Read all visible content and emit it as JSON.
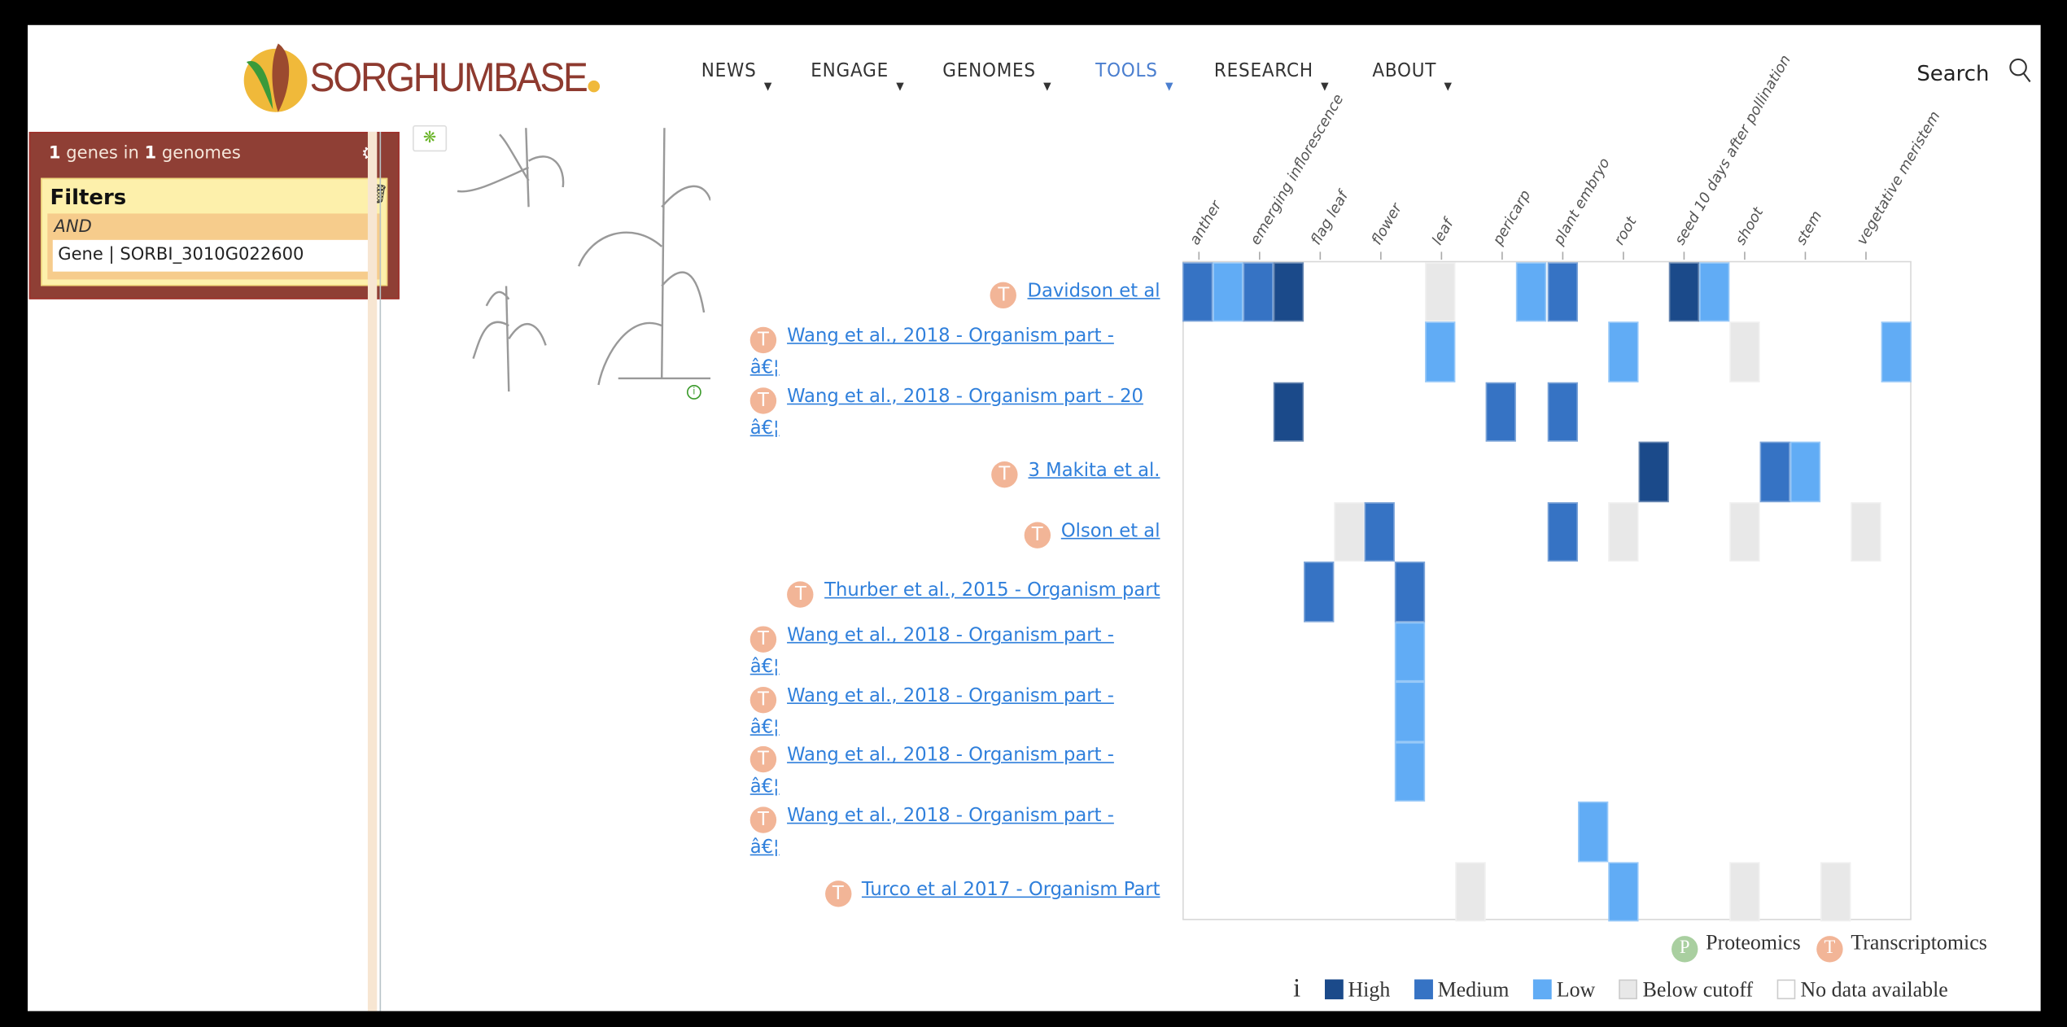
{
  "header": {
    "logo_text": "SORGHUMBASE",
    "nav": [
      {
        "label": "NEWS",
        "active": false
      },
      {
        "label": "ENGAGE",
        "active": false
      },
      {
        "label": "GENOMES",
        "active": false
      },
      {
        "label": "TOOLS",
        "active": true
      },
      {
        "label": "RESEARCH",
        "active": false
      },
      {
        "label": "ABOUT",
        "active": false
      }
    ],
    "search_label": "Search"
  },
  "panel": {
    "gene_count": "1",
    "genes_in": "genes in",
    "genome_count": "1",
    "genomes": "genomes",
    "filters_label": "Filters",
    "operator": "AND",
    "filter": "Gene | SORBI_3010G022600"
  },
  "colors": {
    "high": "#1b4a8a",
    "medium": "#3673c4",
    "low": "#61acf5",
    "below": "#e8e8e8",
    "none": "#ffffff",
    "transcriptomics": "#f2b597",
    "proteomics": "#a9cfa0"
  },
  "chart_data": {
    "type": "heatmap",
    "tissue_labels": [
      "anther",
      "emerging inflorescence",
      "flag leaf",
      "flower",
      "leaf",
      "pericarp",
      "plant embryo",
      "root",
      "seed 10 days after pollination",
      "shoot",
      "stem",
      "vegetative meristem"
    ],
    "columns_count": 24,
    "rows": [
      {
        "label": "Davidson et al",
        "type": "T",
        "cells": {
          "0": "medium",
          "1": "low",
          "2": "medium",
          "3": "high",
          "8": "below",
          "11": "low",
          "12": "medium",
          "16": "high",
          "17": "low"
        }
      },
      {
        "label": "Wang et al., 2018 - Organism part - â€¦",
        "type": "T",
        "cells": {
          "8": "low",
          "14": "low",
          "18": "below",
          "23": "low"
        }
      },
      {
        "label": "Wang et al., 2018 - Organism part - 20 â€¦",
        "type": "T",
        "cells": {
          "3": "high",
          "10": "medium",
          "12": "medium"
        }
      },
      {
        "label": "3 Makita et al.",
        "type": "T",
        "cells": {
          "15": "high",
          "19": "medium",
          "20": "low"
        }
      },
      {
        "label": "Olson et al",
        "type": "T",
        "cells": {
          "5": "below",
          "6": "medium",
          "12": "medium",
          "14": "below",
          "18": "below",
          "22": "below"
        }
      },
      {
        "label": "Thurber et al., 2015 - Organism part",
        "type": "T",
        "cells": {
          "4": "medium",
          "7": "medium"
        }
      },
      {
        "label": "Wang et al., 2018 - Organism part - â€¦",
        "type": "T",
        "cells": {
          "7": "low"
        }
      },
      {
        "label": "Wang et al., 2018 - Organism part - â€¦",
        "type": "T",
        "cells": {
          "7": "low"
        }
      },
      {
        "label": "Wang et al., 2018 - Organism part - â€¦",
        "type": "T",
        "cells": {
          "7": "low"
        }
      },
      {
        "label": "Wang et al., 2018 - Organism part - â€¦",
        "type": "T",
        "cells": {
          "13": "low"
        }
      },
      {
        "label": "Turco et al 2017 - Organism Part",
        "type": "T",
        "cells": {
          "9": "below",
          "14": "low",
          "18": "below",
          "21": "below"
        }
      }
    ],
    "legend": {
      "types": [
        {
          "letter": "P",
          "label": "Proteomics"
        },
        {
          "letter": "T",
          "label": "Transcriptomics"
        }
      ],
      "info": "i",
      "levels": [
        {
          "key": "high",
          "label": "High"
        },
        {
          "key": "medium",
          "label": "Medium"
        },
        {
          "key": "low",
          "label": "Low"
        },
        {
          "key": "below",
          "label": "Below cutoff"
        },
        {
          "key": "none",
          "label": "No data available"
        }
      ]
    }
  }
}
